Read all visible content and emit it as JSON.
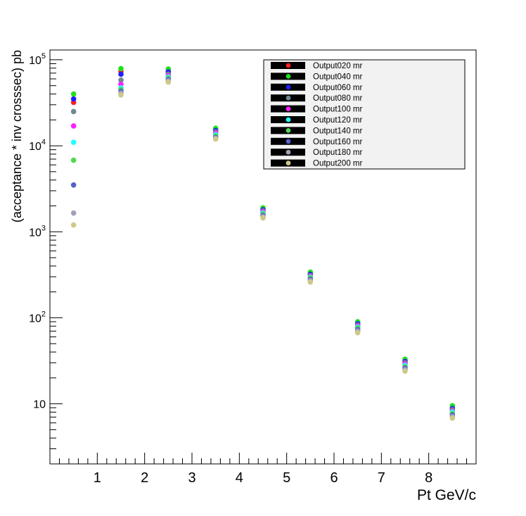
{
  "chart_data": {
    "type": "scatter",
    "xlabel": "Pt GeV/c",
    "ylabel": "(acceptance * inv crosssec) pb",
    "xlim": [
      0,
      9
    ],
    "ylim": [
      2,
      130000
    ],
    "yscale": "log",
    "grid": false,
    "legend_position": "top-right",
    "x_ticks": [
      "1",
      "2",
      "3",
      "4",
      "5",
      "6",
      "7",
      "8"
    ],
    "y_ticks": [
      {
        "base": "10",
        "exp": ""
      },
      {
        "base": "10",
        "exp": "2"
      },
      {
        "base": "10",
        "exp": "3"
      },
      {
        "base": "10",
        "exp": "4"
      },
      {
        "base": "10",
        "exp": "5"
      }
    ],
    "x": [
      0.5,
      1.5,
      2.5,
      3.5,
      4.5,
      5.5,
      6.5,
      7.5,
      8.5
    ],
    "series": [
      {
        "name": "Output020 mr",
        "color": "#ff2020",
        "values": [
          32000,
          73000,
          75000,
          15500,
          1850,
          330,
          88,
          32,
          9.0
        ]
      },
      {
        "name": "Output040 mr",
        "color": "#20e020",
        "values": [
          40000,
          79000,
          78000,
          16000,
          1900,
          340,
          90,
          33,
          9.5
        ]
      },
      {
        "name": "Output060 mr",
        "color": "#2020ff",
        "values": [
          35000,
          68000,
          72000,
          15000,
          1800,
          320,
          85,
          31,
          8.8
        ]
      },
      {
        "name": "Output080 mr",
        "color": "#708890",
        "values": [
          25000,
          58000,
          68000,
          14500,
          1750,
          310,
          82,
          30,
          8.5
        ]
      },
      {
        "name": "Output100 mr",
        "color": "#ff20ff",
        "values": [
          17000,
          52000,
          65000,
          14000,
          1700,
          300,
          80,
          29,
          8.2
        ]
      },
      {
        "name": "Output120 mr",
        "color": "#20ffff",
        "values": [
          11000,
          47000,
          63000,
          13500,
          1650,
          295,
          78,
          28,
          8.0
        ]
      },
      {
        "name": "Output140 mr",
        "color": "#50d850",
        "values": [
          6800,
          45000,
          61000,
          13000,
          1600,
          290,
          76,
          27,
          7.7
        ]
      },
      {
        "name": "Output160 mr",
        "color": "#5560cc",
        "values": [
          3500,
          43000,
          59000,
          12500,
          1550,
          280,
          73,
          26,
          7.4
        ]
      },
      {
        "name": "Output180 mr",
        "color": "#a0a0b8",
        "values": [
          1650,
          41000,
          57000,
          12200,
          1500,
          270,
          70,
          25,
          7.1
        ]
      },
      {
        "name": "Output200 mr",
        "color": "#cfc88a",
        "values": [
          1200,
          39000,
          55000,
          12000,
          1450,
          260,
          67,
          24,
          6.8
        ]
      }
    ]
  }
}
